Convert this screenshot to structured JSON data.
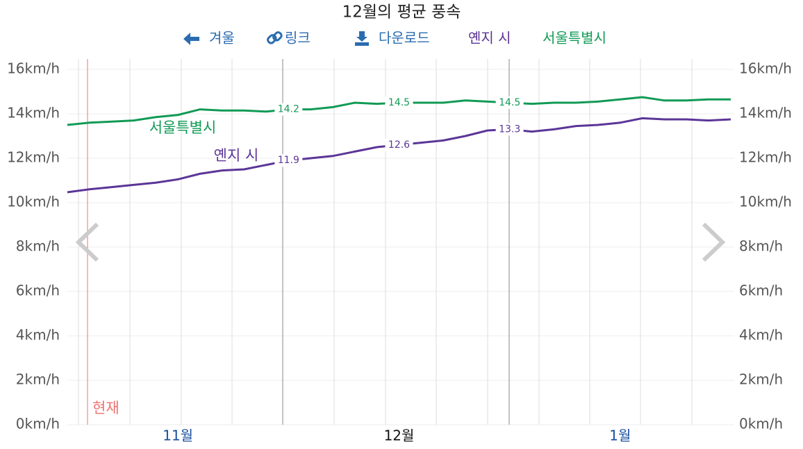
{
  "chart_data": {
    "type": "line",
    "title": "12월의 평균 풍속",
    "toolbar": [
      "겨울",
      "링크",
      "다운로드"
    ],
    "now_label": "현재",
    "categories": [
      null,
      null,
      null,
      null,
      null,
      "11월",
      null,
      null,
      null,
      null,
      null,
      null,
      null,
      null,
      null,
      "12월",
      null,
      null,
      null,
      null,
      null,
      null,
      null,
      null,
      null,
      "1월",
      null,
      null,
      null,
      null,
      null
    ],
    "series": [
      {
        "name": "옌지 시",
        "color": "#5b3597",
        "values": [
          10.47,
          10.6,
          10.7,
          10.8,
          10.9,
          11.05,
          11.3,
          11.45,
          11.5,
          11.7,
          11.9,
          12.0,
          12.1,
          12.3,
          12.5,
          12.6,
          12.7,
          12.8,
          13.0,
          13.25,
          13.3,
          13.2,
          13.3,
          13.45,
          13.5,
          13.6,
          13.8,
          13.75,
          13.75,
          13.7,
          13.75
        ],
        "value_labels": [
          null,
          null,
          null,
          null,
          null,
          null,
          null,
          null,
          null,
          null,
          "11.9",
          null,
          null,
          null,
          null,
          "12.6",
          null,
          null,
          null,
          null,
          "13.3",
          null,
          null,
          null,
          null,
          null,
          null,
          null,
          null,
          null,
          null
        ]
      },
      {
        "name": "서울특별시",
        "color": "#119a55",
        "values": [
          13.5,
          13.6,
          13.65,
          13.7,
          13.85,
          13.95,
          14.2,
          14.15,
          14.15,
          14.1,
          14.2,
          14.2,
          14.3,
          14.5,
          14.45,
          14.5,
          14.5,
          14.5,
          14.6,
          14.55,
          14.5,
          14.45,
          14.5,
          14.5,
          14.55,
          14.65,
          14.75,
          14.6,
          14.6,
          14.65,
          14.65
        ],
        "value_labels": [
          null,
          null,
          null,
          null,
          null,
          null,
          null,
          null,
          null,
          null,
          "14.2",
          null,
          null,
          null,
          null,
          "14.5",
          null,
          null,
          null,
          null,
          "14.5",
          null,
          null,
          null,
          null,
          null,
          null,
          null,
          null,
          null,
          null
        ]
      }
    ],
    "ylim": [
      0,
      16
    ],
    "yticks": [
      {
        "value": 0,
        "label": "0km/h"
      },
      {
        "value": 2,
        "label": "2km/h"
      },
      {
        "value": 4,
        "label": "4km/h"
      },
      {
        "value": 6,
        "label": "6km/h"
      },
      {
        "value": 8,
        "label": "8km/h"
      },
      {
        "value": 10,
        "label": "10km/h"
      },
      {
        "value": 12,
        "label": "12km/h"
      },
      {
        "value": 14,
        "label": "14km/h"
      },
      {
        "value": 16,
        "label": "16km/h"
      }
    ],
    "grid": true
  }
}
